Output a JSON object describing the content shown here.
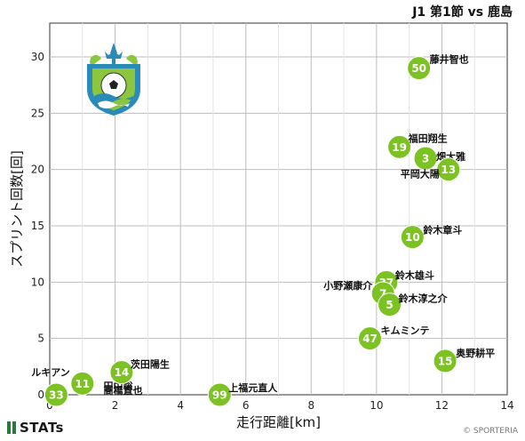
{
  "header": {
    "title": "J1 第1節 vs 鹿島"
  },
  "footer": {
    "logo_text": "STATs",
    "copyright": "© SPORTERIA"
  },
  "colors": {
    "marker": "#7cc223",
    "marker_text": "#ffffff",
    "grid": "#bdbdbd",
    "crest_blue": "#2a8ab8",
    "crest_green": "#8cc63f"
  },
  "chart_data": {
    "type": "scatter",
    "xlabel": "走行距離[km]",
    "ylabel": "スプリント回数[回]",
    "xlim": [
      0,
      14
    ],
    "ylim": [
      0,
      33
    ],
    "xticks": [
      0,
      2,
      4,
      6,
      8,
      10,
      12,
      14
    ],
    "yticks": [
      0,
      5,
      10,
      15,
      20,
      25,
      30
    ],
    "grid": true,
    "points": [
      {
        "number": "50",
        "name": "藤井智也",
        "x": 11.3,
        "y": 29
      },
      {
        "number": "19",
        "name": "福田翔生",
        "x": 10.7,
        "y": 22
      },
      {
        "number": "3",
        "name": "畑大雅",
        "x": 11.5,
        "y": 21
      },
      {
        "number": "13",
        "name": "平岡大陽",
        "x": 12.2,
        "y": 20
      },
      {
        "number": "10",
        "name": "鈴木章斗",
        "x": 11.1,
        "y": 14
      },
      {
        "number": "37",
        "name": "鈴木雄斗",
        "x": 10.3,
        "y": 10
      },
      {
        "number": "7",
        "name": "小野瀬康介",
        "x": 10.2,
        "y": 9
      },
      {
        "number": "5",
        "name": "鈴木淳之介",
        "x": 10.4,
        "y": 8
      },
      {
        "number": "47",
        "name": "キムミンテ",
        "x": 9.8,
        "y": 5
      },
      {
        "number": "15",
        "name": "奥野耕平",
        "x": 12.1,
        "y": 3
      },
      {
        "number": "14",
        "name": "茨田陽生",
        "x": 2.2,
        "y": 2
      },
      {
        "number": "11",
        "name": "ルキアン",
        "x": 1.0,
        "y": 1
      },
      {
        "number": "33",
        "name": "",
        "x": 0.2,
        "y": 0
      },
      {
        "number": "",
        "name": "田中聡",
        "x": 1.1,
        "y": 0.3
      },
      {
        "number": "",
        "name": "髙橋直也",
        "x": 1.1,
        "y": 0.0
      },
      {
        "number": "99",
        "name": "上福元直人",
        "x": 5.2,
        "y": 0
      }
    ]
  }
}
